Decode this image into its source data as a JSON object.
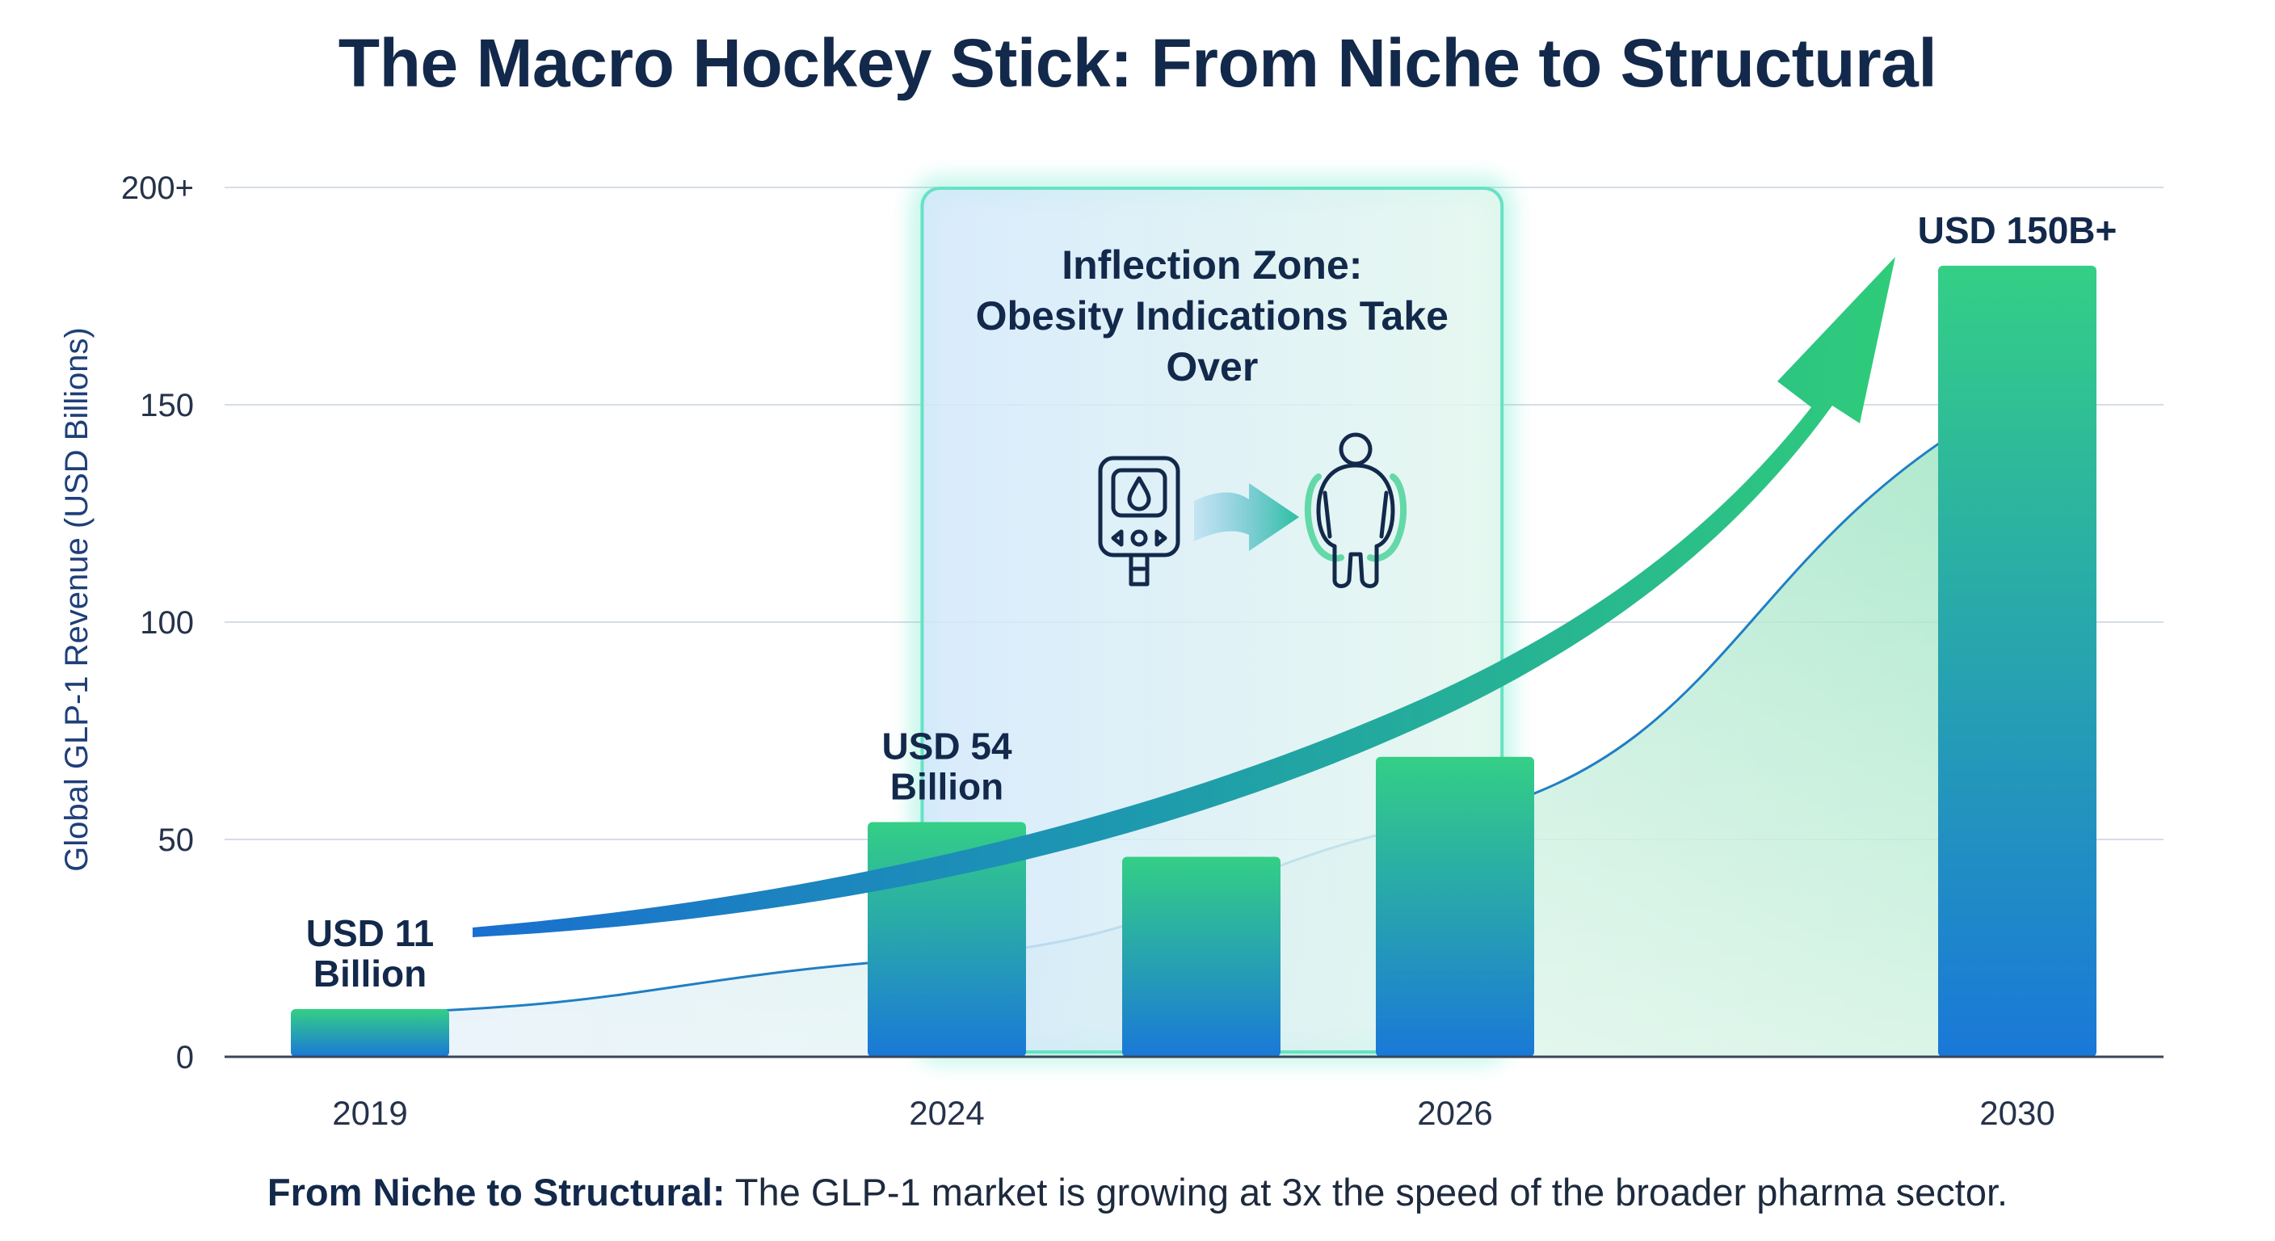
{
  "chart_data": {
    "type": "bar",
    "title": "The Macro Hockey Stick: From Niche to Structural",
    "ylabel": "Global GLP-1 Revenue (USD Billions)",
    "xlabel": "",
    "ylim": [
      0,
      200
    ],
    "y_ticks": [
      {
        "value": 0,
        "label": "0"
      },
      {
        "value": 50,
        "label": "50"
      },
      {
        "value": 100,
        "label": "100"
      },
      {
        "value": 150,
        "label": "150"
      },
      {
        "value": 200,
        "label": "200+"
      }
    ],
    "x_ticks": [
      {
        "year": 2019,
        "label": "2019"
      },
      {
        "year": 2024,
        "label": "2024"
      },
      {
        "year": 2026,
        "label": "2026"
      },
      {
        "year": 2030,
        "label": "2030"
      }
    ],
    "bars": [
      {
        "year": 2019,
        "value": 11,
        "label": "USD 11\nBillion"
      },
      {
        "year": 2024,
        "value": 54,
        "label": "USD 54\nBillion"
      },
      {
        "year": 2025,
        "value": 46,
        "label": ""
      },
      {
        "year": 2026,
        "value": 69,
        "label": ""
      },
      {
        "year": 2030,
        "value": 182,
        "label": "USD 150B+"
      }
    ],
    "trend_area": [
      {
        "year": 2019,
        "value": 10
      },
      {
        "year": 2024,
        "value": 23
      },
      {
        "year": 2026,
        "value": 55
      },
      {
        "year": 2030,
        "value": 152
      }
    ],
    "annotation": {
      "text": "Inflection Zone:\nObesity Indications Take\nOver",
      "from_year": 2023.8,
      "to_year": 2026.3
    },
    "grid": true,
    "legend": "none"
  },
  "footer": {
    "bold": "From Niche to Structural:",
    "text": " The GLP-1 market is growing at 3x the speed of the broader pharma sector."
  },
  "icons": [
    "glucose-meter-icon",
    "arrow-right-icon",
    "person-obesity-icon"
  ],
  "colors": {
    "title": "#13294b",
    "bar_top": "#34cf86",
    "bar_bottom": "#1a78d8",
    "zone_border": "#5ee0c0",
    "grid": "#d4dbe4"
  }
}
